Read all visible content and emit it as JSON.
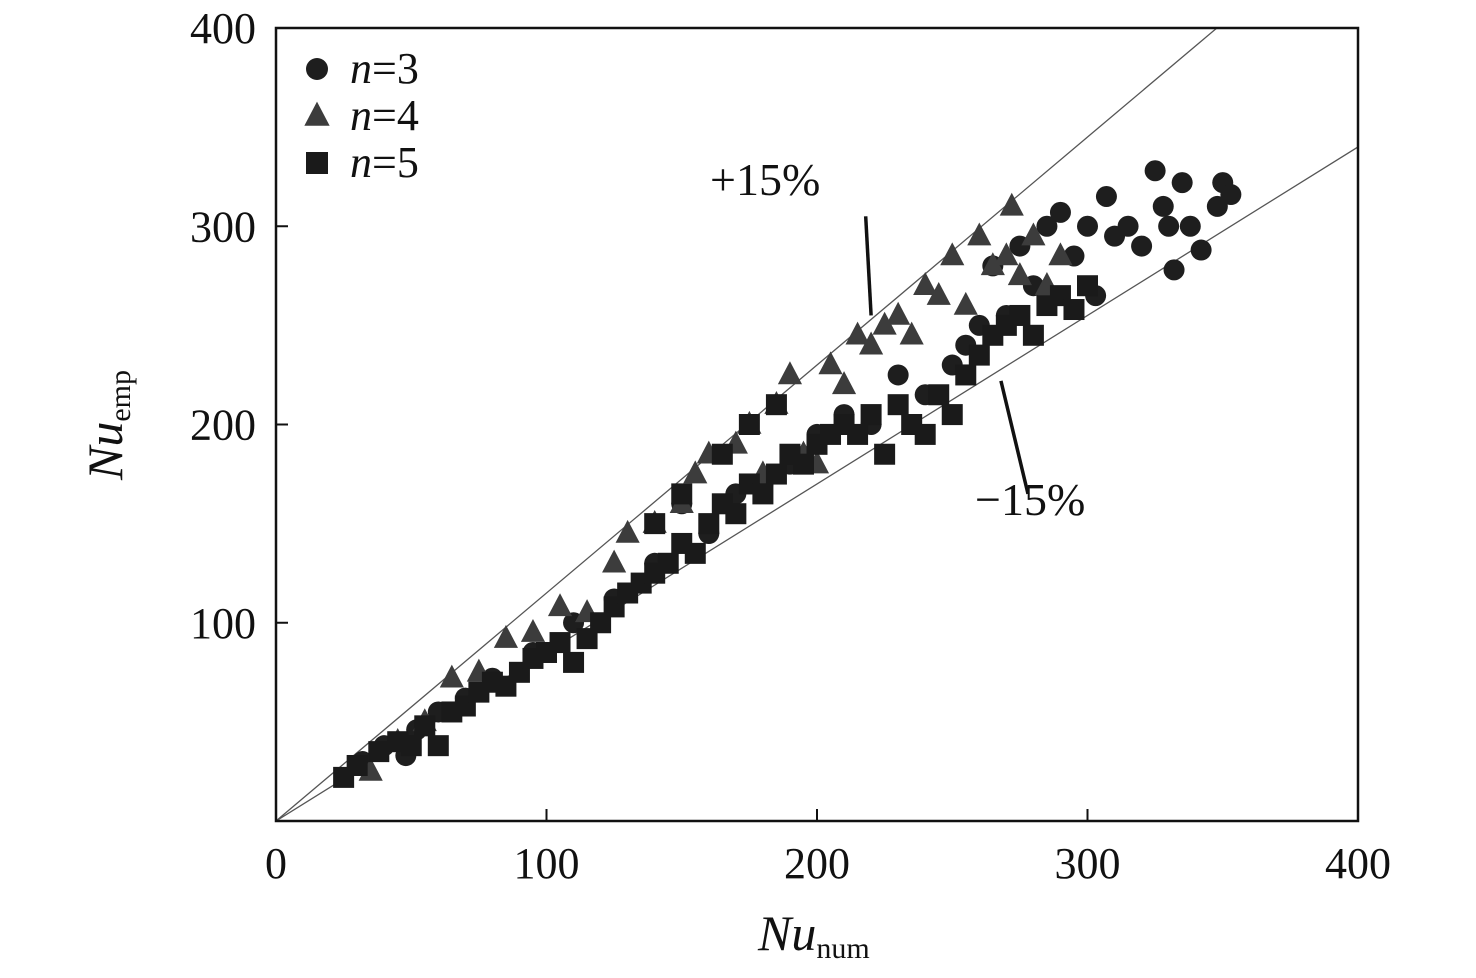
{
  "chart_data": {
    "type": "scatter",
    "title": "",
    "xlabel": {
      "main": "Nu",
      "sub": "num"
    },
    "ylabel": {
      "main": "Nu",
      "sub": "emp"
    },
    "xlim": [
      0,
      400
    ],
    "ylim": [
      0,
      400
    ],
    "x_ticks": [
      0,
      100,
      200,
      300,
      400
    ],
    "y_ticks": [
      100,
      200,
      300,
      400
    ],
    "grid": false,
    "legend_position": "top-left",
    "reference_lines": [
      {
        "label": "+15%",
        "slope": 1.15
      },
      {
        "label": "−15%",
        "slope": 0.85
      }
    ],
    "series": [
      {
        "name": "n=3",
        "var": "n",
        "eq": "=3",
        "marker": "circle",
        "color": "#1e1e1e",
        "points": [
          [
            32,
            30
          ],
          [
            40,
            38
          ],
          [
            48,
            33
          ],
          [
            52,
            46
          ],
          [
            60,
            55
          ],
          [
            70,
            62
          ],
          [
            80,
            72
          ],
          [
            95,
            85
          ],
          [
            110,
            100
          ],
          [
            125,
            112
          ],
          [
            140,
            130
          ],
          [
            150,
            160
          ],
          [
            160,
            145
          ],
          [
            170,
            165
          ],
          [
            180,
            170
          ],
          [
            190,
            180
          ],
          [
            200,
            195
          ],
          [
            210,
            205
          ],
          [
            220,
            200
          ],
          [
            230,
            225
          ],
          [
            240,
            215
          ],
          [
            250,
            230
          ],
          [
            255,
            240
          ],
          [
            260,
            250
          ],
          [
            265,
            280
          ],
          [
            270,
            255
          ],
          [
            275,
            290
          ],
          [
            280,
            270
          ],
          [
            285,
            300
          ],
          [
            290,
            307
          ],
          [
            295,
            285
          ],
          [
            300,
            300
          ],
          [
            303,
            265
          ],
          [
            307,
            315
          ],
          [
            310,
            295
          ],
          [
            315,
            300
          ],
          [
            320,
            290
          ],
          [
            325,
            328
          ],
          [
            328,
            310
          ],
          [
            330,
            300
          ],
          [
            332,
            278
          ],
          [
            335,
            322
          ],
          [
            338,
            300
          ],
          [
            342,
            288
          ],
          [
            348,
            310
          ],
          [
            350,
            322
          ],
          [
            353,
            316
          ]
        ]
      },
      {
        "name": "n=4",
        "var": "n",
        "eq": "=4",
        "marker": "triangle",
        "color": "#3c3c3c",
        "points": [
          [
            35,
            25
          ],
          [
            45,
            40
          ],
          [
            55,
            50
          ],
          [
            65,
            72
          ],
          [
            75,
            75
          ],
          [
            85,
            92
          ],
          [
            95,
            95
          ],
          [
            105,
            108
          ],
          [
            115,
            105
          ],
          [
            125,
            130
          ],
          [
            130,
            145
          ],
          [
            140,
            150
          ],
          [
            150,
            160
          ],
          [
            155,
            175
          ],
          [
            160,
            185
          ],
          [
            170,
            190
          ],
          [
            175,
            200
          ],
          [
            180,
            175
          ],
          [
            185,
            210
          ],
          [
            190,
            225
          ],
          [
            195,
            185
          ],
          [
            200,
            180
          ],
          [
            205,
            230
          ],
          [
            210,
            220
          ],
          [
            215,
            245
          ],
          [
            220,
            240
          ],
          [
            225,
            250
          ],
          [
            230,
            255
          ],
          [
            235,
            245
          ],
          [
            240,
            270
          ],
          [
            245,
            265
          ],
          [
            250,
            285
          ],
          [
            255,
            260
          ],
          [
            260,
            295
          ],
          [
            265,
            280
          ],
          [
            270,
            285
          ],
          [
            272,
            310
          ],
          [
            275,
            275
          ],
          [
            280,
            295
          ],
          [
            285,
            270
          ],
          [
            290,
            285
          ]
        ]
      },
      {
        "name": "n=5",
        "var": "n",
        "eq": "=5",
        "marker": "square",
        "color": "#1a1a1a",
        "points": [
          [
            25,
            22
          ],
          [
            30,
            28
          ],
          [
            38,
            35
          ],
          [
            45,
            40
          ],
          [
            50,
            38
          ],
          [
            55,
            48
          ],
          [
            60,
            38
          ],
          [
            65,
            55
          ],
          [
            70,
            58
          ],
          [
            75,
            65
          ],
          [
            80,
            70
          ],
          [
            85,
            68
          ],
          [
            90,
            75
          ],
          [
            95,
            82
          ],
          [
            100,
            85
          ],
          [
            105,
            90
          ],
          [
            110,
            80
          ],
          [
            115,
            92
          ],
          [
            120,
            100
          ],
          [
            125,
            108
          ],
          [
            130,
            115
          ],
          [
            135,
            120
          ],
          [
            140,
            125
          ],
          [
            145,
            130
          ],
          [
            150,
            140
          ],
          [
            155,
            135
          ],
          [
            160,
            150
          ],
          [
            165,
            160
          ],
          [
            170,
            155
          ],
          [
            175,
            170
          ],
          [
            180,
            165
          ],
          [
            185,
            175
          ],
          [
            190,
            185
          ],
          [
            195,
            180
          ],
          [
            200,
            190
          ],
          [
            205,
            195
          ],
          [
            210,
            200
          ],
          [
            215,
            195
          ],
          [
            220,
            205
          ],
          [
            225,
            185
          ],
          [
            230,
            210
          ],
          [
            235,
            200
          ],
          [
            240,
            195
          ],
          [
            245,
            215
          ],
          [
            250,
            205
          ],
          [
            255,
            225
          ],
          [
            260,
            235
          ],
          [
            265,
            245
          ],
          [
            270,
            250
          ],
          [
            275,
            255
          ],
          [
            280,
            245
          ],
          [
            285,
            260
          ],
          [
            290,
            265
          ],
          [
            295,
            258
          ],
          [
            300,
            270
          ],
          [
            185,
            210
          ],
          [
            175,
            200
          ],
          [
            165,
            185
          ],
          [
            150,
            165
          ],
          [
            140,
            150
          ]
        ]
      }
    ],
    "annotations": [
      {
        "text": "+15%",
        "arrow_from": [
          218,
          305
        ],
        "arrow_to": [
          220,
          255
        ]
      },
      {
        "text": "−15%",
        "arrow_from": [
          278,
          165
        ],
        "arrow_to": [
          268,
          222
        ]
      }
    ]
  }
}
